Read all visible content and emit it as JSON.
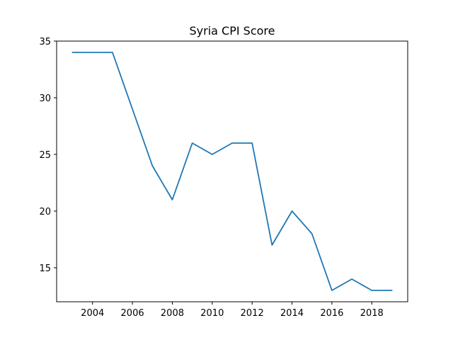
{
  "chart_data": {
    "type": "line",
    "title": "Syria CPI Score",
    "xlabel": "",
    "ylabel": "",
    "x": [
      2003,
      2004,
      2005,
      2006,
      2007,
      2008,
      2009,
      2010,
      2011,
      2012,
      2013,
      2014,
      2015,
      2016,
      2017,
      2018,
      2019
    ],
    "series": [
      {
        "color": "#1f77b4",
        "values": [
          34,
          34,
          34,
          29,
          24,
          21,
          26,
          25,
          26,
          26,
          17,
          20,
          18,
          13,
          14,
          13,
          13
        ]
      }
    ],
    "xlim": [
      2002.2,
      2019.8
    ],
    "ylim": [
      12.0,
      35.0
    ],
    "xticks": [
      2004,
      2006,
      2008,
      2010,
      2012,
      2014,
      2016,
      2018
    ],
    "xtick_labels": [
      "2004",
      "2006",
      "2008",
      "2010",
      "2012",
      "2014",
      "2016",
      "2018"
    ],
    "yticks": [
      15,
      20,
      25,
      30,
      35
    ],
    "ytick_labels": [
      "15",
      "20",
      "25",
      "30",
      "35"
    ],
    "grid": false,
    "legend": "none"
  }
}
